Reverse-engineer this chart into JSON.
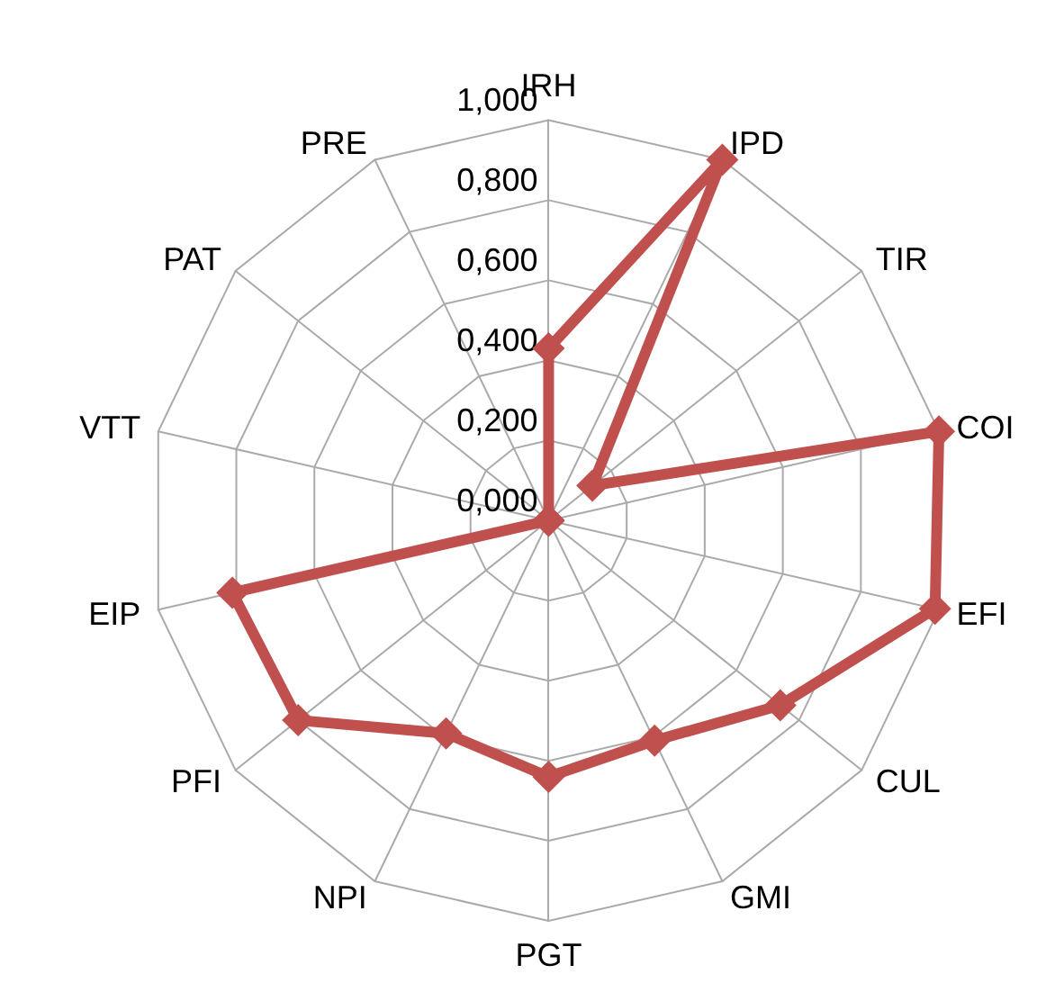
{
  "chart_data": {
    "type": "radar",
    "categories": [
      "IRH",
      "IPD",
      "TIR",
      "COI",
      "EFI",
      "CUL",
      "GMI",
      "PGT",
      "NPI",
      "PFI",
      "EIP",
      "VTT",
      "PAT",
      "PRE"
    ],
    "series": [
      {
        "color": "#c0504d",
        "values": [
          0.43,
          1.0,
          0.14,
          1.0,
          0.99,
          0.74,
          0.61,
          0.64,
          0.59,
          0.8,
          0.81,
          0,
          0,
          0
        ]
      }
    ],
    "ylim": [
      0,
      1
    ],
    "yticks": [
      {
        "value": 0,
        "label": "0,000"
      },
      {
        "value": 0.2,
        "label": "0,200"
      },
      {
        "value": 0.4,
        "label": "0,400"
      },
      {
        "value": 0.6,
        "label": "0,600"
      },
      {
        "value": 0.8,
        "label": "0,800"
      },
      {
        "value": 1,
        "label": "1,000"
      }
    ],
    "grid": true,
    "marker": "diamond",
    "line_style": "solid"
  }
}
